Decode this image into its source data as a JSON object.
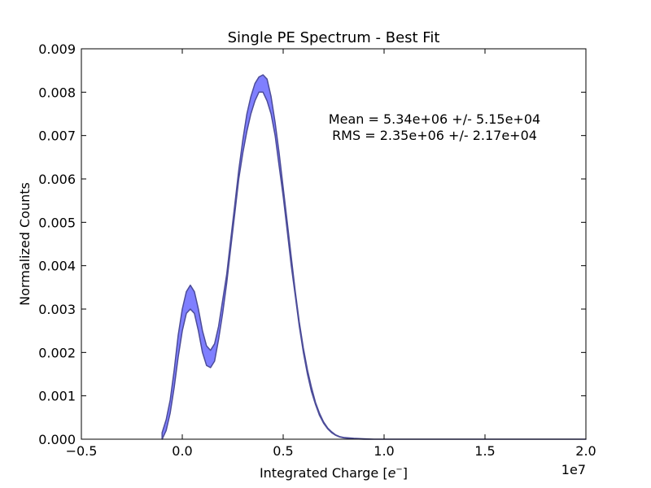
{
  "chart_data": {
    "type": "area",
    "title": "Single PE Spectrum - Best Fit",
    "xlabel": "Integrated Charge [",
    "xlabel_math": "e",
    "xlabel_sup": "−",
    "xlabel_end": "]",
    "ylabel": "Normalized Counts",
    "x_offset_label": "1e7",
    "xlim": [
      -0.5,
      2.0
    ],
    "ylim": [
      0.0,
      0.009
    ],
    "x_ticks": [
      {
        "value": -0.5,
        "label": "−0.5"
      },
      {
        "value": 0.0,
        "label": "0.0"
      },
      {
        "value": 0.5,
        "label": "0.5"
      },
      {
        "value": 1.0,
        "label": "1.0"
      },
      {
        "value": 1.5,
        "label": "1.5"
      },
      {
        "value": 2.0,
        "label": "2.0"
      }
    ],
    "y_ticks": [
      {
        "value": 0.0,
        "label": "0.000"
      },
      {
        "value": 0.001,
        "label": "0.001"
      },
      {
        "value": 0.002,
        "label": "0.002"
      },
      {
        "value": 0.003,
        "label": "0.003"
      },
      {
        "value": 0.004,
        "label": "0.004"
      },
      {
        "value": 0.005,
        "label": "0.005"
      },
      {
        "value": 0.006,
        "label": "0.006"
      },
      {
        "value": 0.007,
        "label": "0.007"
      },
      {
        "value": 0.008,
        "label": "0.008"
      },
      {
        "value": 0.009,
        "label": "0.009"
      }
    ],
    "annotations": [
      {
        "text": "Mean = 5.34e+06 +/- 5.15e+04"
      },
      {
        "text": "RMS = 2.35e+06 +/- 2.17e+04"
      }
    ],
    "grid": false,
    "fill_color": "#7f7fff",
    "edge_color": "#4c4c99",
    "band": {
      "x": [
        -0.1,
        -0.08,
        -0.06,
        -0.04,
        -0.02,
        0.0,
        0.02,
        0.04,
        0.06,
        0.08,
        0.1,
        0.12,
        0.14,
        0.16,
        0.18,
        0.2,
        0.22,
        0.24,
        0.26,
        0.28,
        0.3,
        0.32,
        0.34,
        0.36,
        0.38,
        0.4,
        0.42,
        0.44,
        0.46,
        0.48,
        0.5,
        0.52,
        0.54,
        0.56,
        0.58,
        0.6,
        0.62,
        0.64,
        0.66,
        0.68,
        0.7,
        0.72,
        0.74,
        0.76,
        0.78,
        0.8,
        0.85,
        0.9,
        0.95,
        1.0,
        1.05,
        1.1,
        1.15,
        1.2,
        1.3,
        1.4,
        1.6,
        1.8,
        2.0
      ],
      "upper": [
        0.00015,
        0.00045,
        0.0009,
        0.0016,
        0.0024,
        0.003,
        0.0034,
        0.00355,
        0.0034,
        0.003,
        0.0025,
        0.00215,
        0.00205,
        0.0022,
        0.0026,
        0.0032,
        0.0038,
        0.0046,
        0.0054,
        0.0062,
        0.0069,
        0.0075,
        0.0079,
        0.0082,
        0.00835,
        0.0084,
        0.0083,
        0.0079,
        0.0073,
        0.0066,
        0.0058,
        0.005,
        0.0042,
        0.0034,
        0.0027,
        0.0021,
        0.0016,
        0.0012,
        0.00085,
        0.0006,
        0.0004,
        0.00026,
        0.00017,
        0.0001,
        6e-05,
        4e-05,
        2e-05,
        1e-05,
        0.0,
        0.0,
        0.0,
        0.0,
        0.0,
        0.0,
        0.0,
        0.0,
        0.0,
        0.0,
        0.0
      ],
      "lower": [
        0.0,
        0.0002,
        0.0006,
        0.0012,
        0.0019,
        0.0025,
        0.0029,
        0.003,
        0.0029,
        0.0025,
        0.002,
        0.0017,
        0.00165,
        0.0018,
        0.0023,
        0.0029,
        0.0036,
        0.0044,
        0.0052,
        0.006,
        0.0066,
        0.0071,
        0.0075,
        0.0078,
        0.008,
        0.008,
        0.0078,
        0.0075,
        0.007,
        0.0063,
        0.0056,
        0.0048,
        0.004,
        0.0033,
        0.0026,
        0.002,
        0.0015,
        0.0011,
        0.0008,
        0.00055,
        0.00037,
        0.00024,
        0.00015,
        9e-05,
        5e-05,
        3e-05,
        1e-05,
        0.0,
        0.0,
        0.0,
        0.0,
        0.0,
        0.0,
        0.0,
        0.0,
        0.0,
        0.0,
        0.0,
        0.0
      ]
    }
  }
}
